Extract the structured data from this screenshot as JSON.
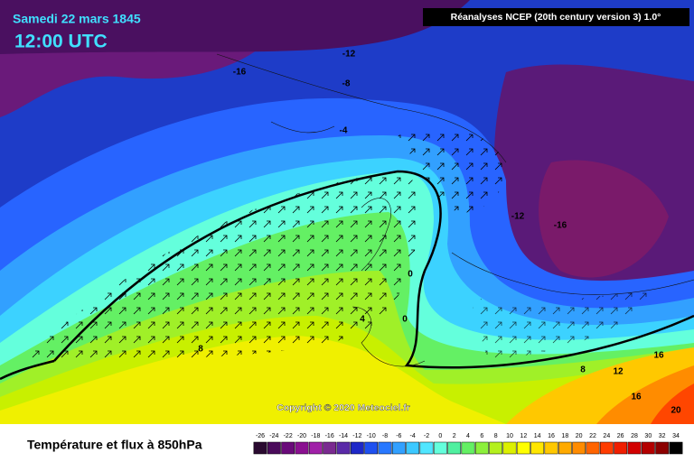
{
  "header": {
    "date": "Samedi 22 mars 1845",
    "time": "12:00 UTC",
    "source": "Réanalyses NCEP (20th century version 3) 1.0°"
  },
  "copyright": "Copyright © 2020 Meteociel.fr",
  "footer_title": "Température et flux à 850hPa",
  "contour_labels": [
    -16,
    -12,
    -8,
    -4,
    -12,
    -16,
    0,
    4,
    0,
    8,
    8,
    12,
    16,
    16,
    20
  ],
  "colorbar": {
    "ticks": [
      -26,
      -24,
      -22,
      -20,
      -18,
      -16,
      -14,
      -12,
      -10,
      -8,
      -6,
      -4,
      -2,
      0,
      2,
      4,
      6,
      8,
      10,
      12,
      14,
      16,
      18,
      20,
      22,
      24,
      26,
      28,
      30,
      32,
      34
    ],
    "colors": [
      "#2a0a30",
      "#4a0a5a",
      "#6a0a7a",
      "#8a1090",
      "#a020a8",
      "#7a2a90",
      "#5a2aa8",
      "#1e28c8",
      "#1e50f0",
      "#2878ff",
      "#32a0ff",
      "#3cc8ff",
      "#50e6ff",
      "#64ffdc",
      "#50f0a0",
      "#64f064",
      "#8cf03c",
      "#b4f01e",
      "#dcf000",
      "#ffff00",
      "#ffe600",
      "#ffc800",
      "#ffaa00",
      "#ff8c00",
      "#ff6400",
      "#ff3c00",
      "#f01e00",
      "#d20000",
      "#b40000",
      "#8c0000",
      "#000000"
    ]
  }
}
